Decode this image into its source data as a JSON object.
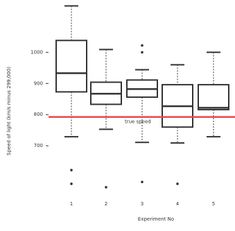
{
  "chart_data": {
    "type": "box",
    "x_label": "Experiment No",
    "y_label": "Speed of light (km/s minus 299,000)",
    "categories": [
      "1",
      "2",
      "3",
      "4",
      "5"
    ],
    "whisker_high": [
      1149,
      1009,
      944,
      960,
      1000
    ],
    "q3": [
      1038,
      904,
      911,
      896,
      896
    ],
    "median": [
      933,
      867,
      882,
      827,
      822
    ],
    "q1": [
      873,
      833,
      856,
      760,
      816
    ],
    "whisker_low": [
      729,
      753,
      711,
      709,
      729
    ],
    "outliers": [
      [
        622,
        578
      ],
      [
        567
      ],
      [
        1022,
        1000,
        584
      ],
      [
        578
      ],
      []
    ],
    "ylim": [
      500,
      1150
    ],
    "yticks": [
      700,
      800,
      900,
      1000
    ],
    "reference": {
      "value": 792.458,
      "label": "true speed",
      "color": "#e8474a"
    },
    "color": "#333333"
  }
}
